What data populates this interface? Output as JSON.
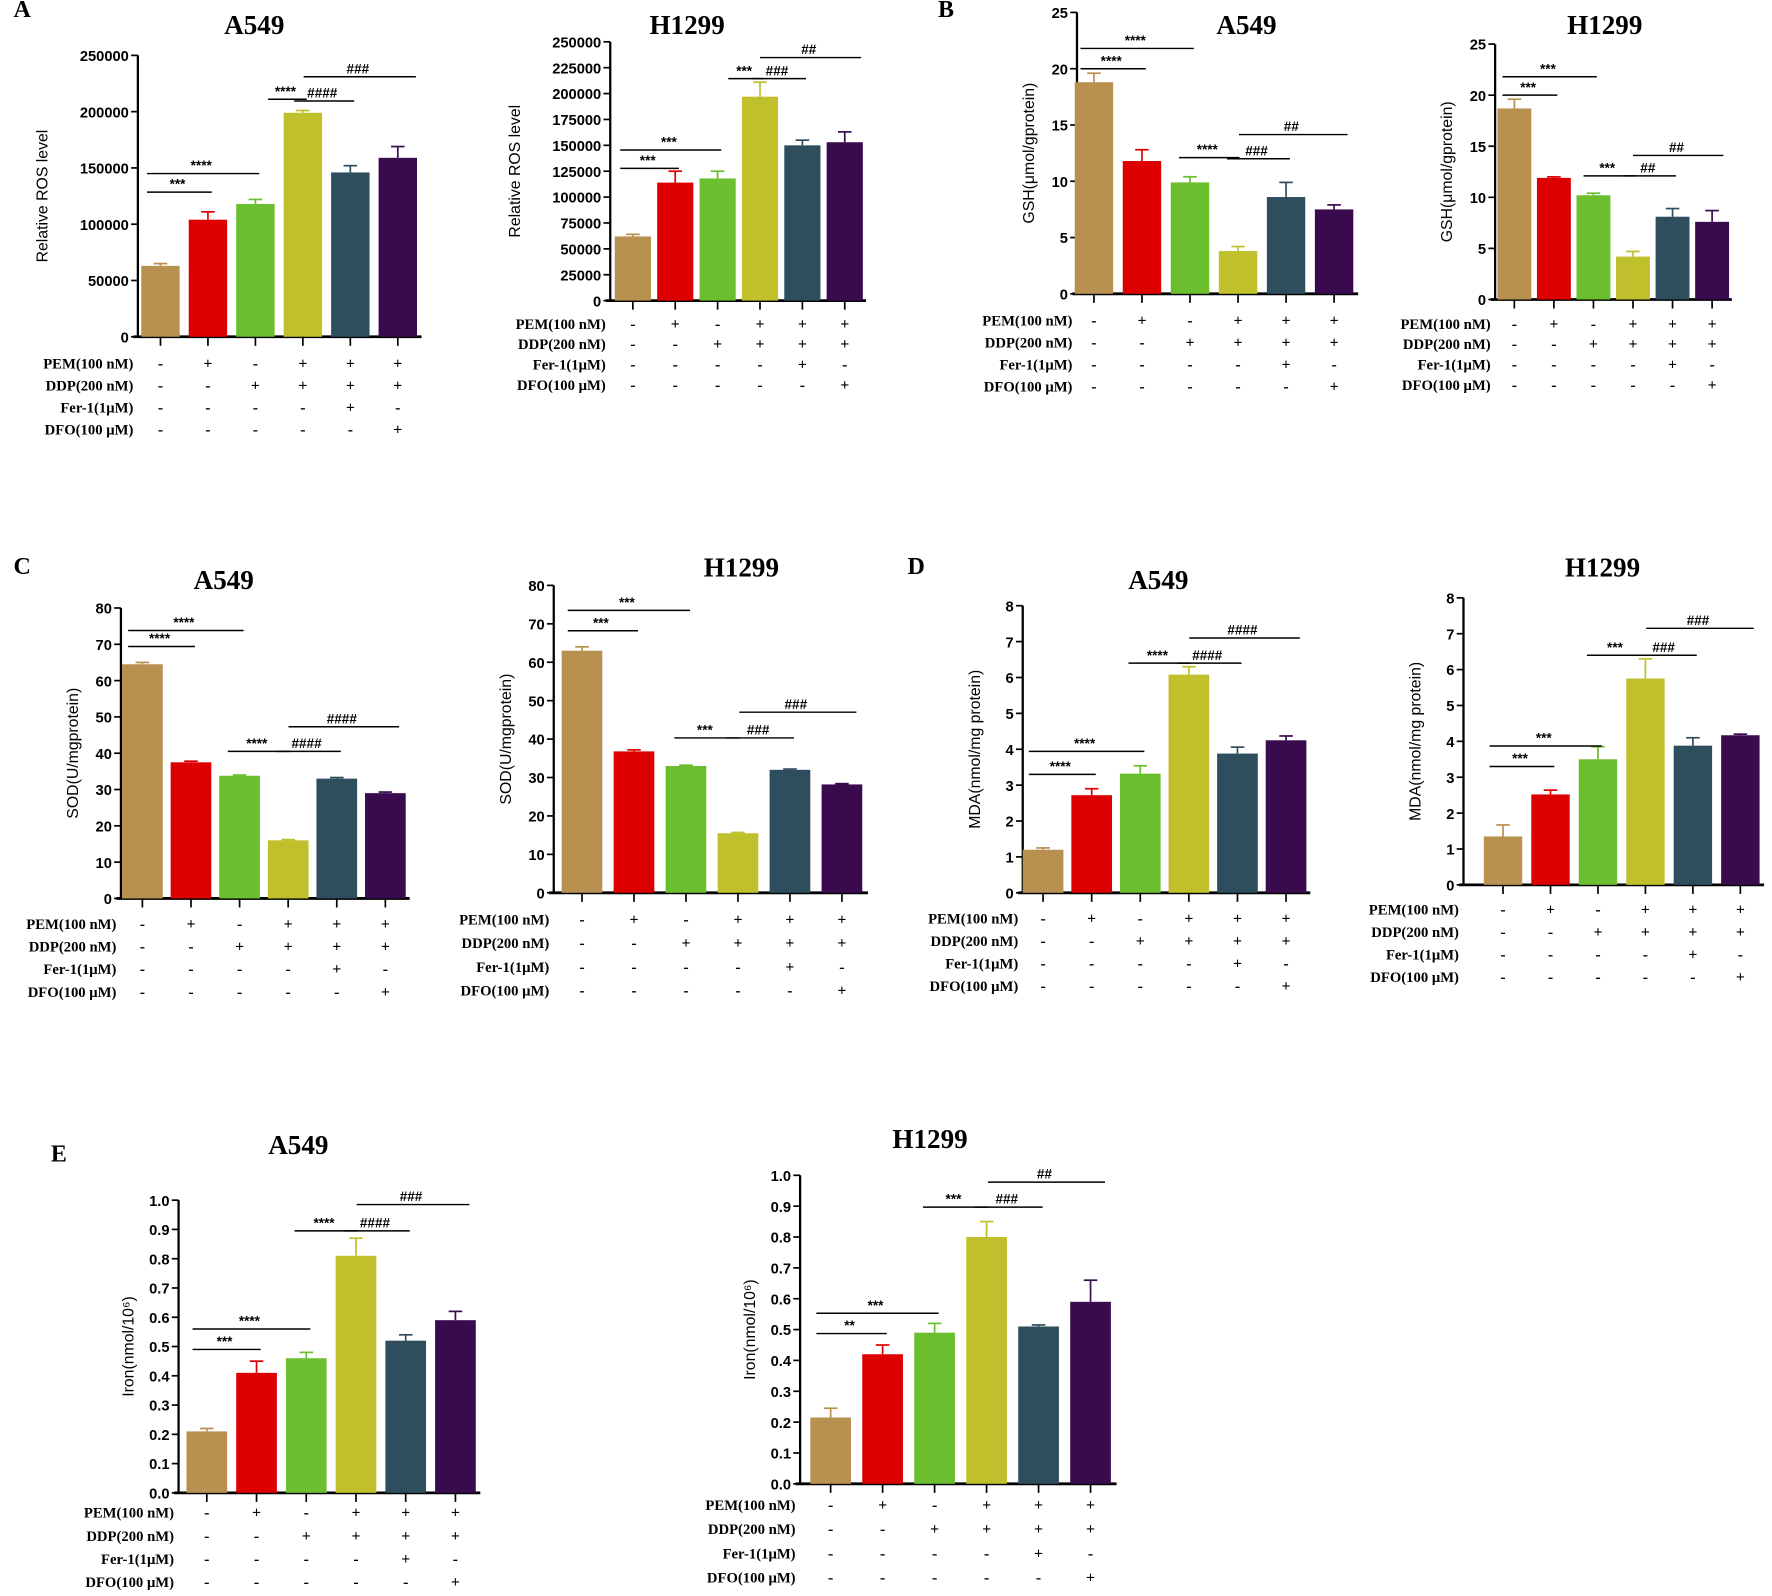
{
  "panels": [
    "A",
    "B",
    "C",
    "D",
    "E"
  ],
  "treatments": {
    "rows": [
      "PEM(100 nM)",
      "DDP(200 nM)",
      "Fer-1(1μM)",
      "DFO(100 μM)"
    ],
    "signs": [
      [
        "-",
        "+",
        "-",
        "+",
        "+",
        "+"
      ],
      [
        "-",
        "-",
        "+",
        "+",
        "+",
        "+"
      ],
      [
        "-",
        "-",
        "-",
        "-",
        "+",
        "-"
      ],
      [
        "-",
        "-",
        "-",
        "-",
        "-",
        "+"
      ]
    ]
  },
  "bar_colors": [
    "#B8904F",
    "#DD0000",
    "#6BBE2E",
    "#C0C02C",
    "#2E4E5E",
    "#3A0A4E"
  ],
  "chart_data": [
    {
      "type": "bar",
      "panel": "A",
      "title": "A549",
      "ylabel": "Relative ROS level",
      "ylim": [
        0,
        250000
      ],
      "yticks": [
        0,
        50000,
        100000,
        150000,
        200000,
        250000
      ],
      "values": [
        63000,
        104000,
        118000,
        199000,
        146000,
        159000
      ],
      "errors": [
        2000,
        7000,
        4000,
        2000,
        6000,
        10000
      ],
      "annotations": [
        {
          "from": 0,
          "to": 1,
          "y": 128500,
          "label": "***"
        },
        {
          "from": 0,
          "to": 2,
          "y": 145000,
          "label": "****"
        },
        {
          "from": 2.55,
          "to": 3,
          "y": 211000,
          "label": "****"
        },
        {
          "from": 3.1,
          "to": 4,
          "y": 209500,
          "label": "####"
        },
        {
          "from": 3.3,
          "to": 5.3,
          "y": 231000,
          "label": "###"
        }
      ]
    },
    {
      "type": "bar",
      "panel": "A",
      "title": "H1299",
      "ylabel": "Relative ROS level",
      "ylim": [
        0,
        250000
      ],
      "yticks": [
        0,
        25000,
        50000,
        75000,
        100000,
        125000,
        150000,
        175000,
        200000,
        225000,
        250000
      ],
      "values": [
        62000,
        114000,
        118000,
        197000,
        150000,
        153000
      ],
      "errors": [
        2000,
        11000,
        7000,
        14000,
        5000,
        10000
      ],
      "annotations": [
        {
          "from": 0,
          "to": 1,
          "y": 127700,
          "label": "***"
        },
        {
          "from": 0,
          "to": 2,
          "y": 145500,
          "label": "***"
        },
        {
          "from": 2.55,
          "to": 3,
          "y": 214400,
          "label": "***"
        },
        {
          "from": 3.1,
          "to": 4,
          "y": 214400,
          "label": "###"
        },
        {
          "from": 3.3,
          "to": 5.3,
          "y": 234800,
          "label": "##"
        }
      ]
    },
    {
      "type": "bar",
      "panel": "B",
      "title": "A549",
      "ylabel": "GSH(μmol/gprotein)",
      "ylim": [
        0,
        25
      ],
      "yticks": [
        0,
        5,
        10,
        15,
        20,
        25
      ],
      "values": [
        18.8,
        11.8,
        9.9,
        3.8,
        8.6,
        7.5
      ],
      "errors": [
        0.8,
        1.0,
        0.5,
        0.4,
        1.3,
        0.4
      ],
      "annotations": [
        {
          "from": 0,
          "to": 1,
          "y": 20.0,
          "label": "****"
        },
        {
          "from": 0,
          "to": 2,
          "y": 21.8,
          "label": "****"
        },
        {
          "from": 2.05,
          "to": 2.95,
          "y": 12.1,
          "label": "****"
        },
        {
          "from": 3.05,
          "to": 4,
          "y": 12.0,
          "label": "###"
        },
        {
          "from": 3.3,
          "to": 5.2,
          "y": 14.15,
          "label": "##"
        }
      ]
    },
    {
      "type": "bar",
      "panel": "B",
      "title": "H1299",
      "ylabel": "GSH(μmol/gprotein)",
      "ylim": [
        0,
        25
      ],
      "yticks": [
        0,
        5,
        10,
        15,
        20,
        25
      ],
      "values": [
        18.7,
        11.9,
        10.2,
        4.2,
        8.1,
        7.6
      ],
      "errors": [
        0.9,
        0.1,
        0.2,
        0.5,
        0.8,
        1.1
      ],
      "annotations": [
        {
          "from": 0,
          "to": 1,
          "y": 20.0,
          "label": "***"
        },
        {
          "from": 0,
          "to": 2,
          "y": 21.8,
          "label": "***"
        },
        {
          "from": 2.05,
          "to": 2.95,
          "y": 12.1,
          "label": "***"
        },
        {
          "from": 3.05,
          "to": 4,
          "y": 12.1,
          "label": "##"
        },
        {
          "from": 3.3,
          "to": 5.2,
          "y": 14.1,
          "label": "##"
        }
      ]
    },
    {
      "type": "bar",
      "panel": "C",
      "title": "A549",
      "ylabel": "SOD(U/mgprotein)",
      "ylim": [
        0,
        80
      ],
      "yticks": [
        0,
        10,
        20,
        30,
        40,
        50,
        60,
        70,
        80
      ],
      "values": [
        64.5,
        37.5,
        33.8,
        16,
        33,
        29
      ],
      "errors": [
        0.5,
        0.3,
        0.2,
        0.2,
        0.3,
        0.3
      ],
      "annotations": [
        {
          "from": 0,
          "to": 1,
          "y": 69.4,
          "label": "****"
        },
        {
          "from": 0,
          "to": 2,
          "y": 73.8,
          "label": "****"
        },
        {
          "from": 2.05,
          "to": 2.95,
          "y": 40.5,
          "label": "****"
        },
        {
          "from": 3.05,
          "to": 4,
          "y": 40.5,
          "label": "####"
        },
        {
          "from": 3.3,
          "to": 5.2,
          "y": 47.3,
          "label": "####"
        }
      ]
    },
    {
      "type": "bar",
      "panel": "C",
      "title": "H1299",
      "ylabel": "SOD(U/mgprotein)",
      "ylim": [
        0,
        80
      ],
      "yticks": [
        0,
        10,
        20,
        30,
        40,
        50,
        60,
        70,
        80
      ],
      "values": [
        63,
        36.8,
        33,
        15.5,
        32,
        28.2
      ],
      "errors": [
        1,
        0.4,
        0.2,
        0.2,
        0.2,
        0.2
      ],
      "annotations": [
        {
          "from": 0,
          "to": 1,
          "y": 68.2,
          "label": "***"
        },
        {
          "from": 0,
          "to": 2,
          "y": 73.5,
          "label": "***"
        },
        {
          "from": 2.05,
          "to": 2.95,
          "y": 40.3,
          "label": "***"
        },
        {
          "from": 3.05,
          "to": 4,
          "y": 40.3,
          "label": "###"
        },
        {
          "from": 3.3,
          "to": 5.2,
          "y": 47,
          "label": "###"
        }
      ]
    },
    {
      "type": "bar",
      "panel": "D",
      "title": "A549",
      "ylabel": "MDA(nmol/mg protein)",
      "ylim": [
        0,
        8
      ],
      "yticks": [
        0,
        1,
        2,
        3,
        4,
        5,
        6,
        7,
        8
      ],
      "values": [
        1.2,
        2.72,
        3.32,
        6.08,
        3.88,
        4.25
      ],
      "errors": [
        0.05,
        0.18,
        0.22,
        0.22,
        0.18,
        0.12
      ],
      "annotations": [
        {
          "from": 0,
          "to": 1,
          "y": 3.3,
          "label": "****"
        },
        {
          "from": 0,
          "to": 2,
          "y": 3.94,
          "label": "****"
        },
        {
          "from": 2.05,
          "to": 2.95,
          "y": 6.4,
          "label": "****"
        },
        {
          "from": 3.05,
          "to": 4,
          "y": 6.4,
          "label": "####"
        },
        {
          "from": 3.3,
          "to": 5.2,
          "y": 7.1,
          "label": "####"
        }
      ]
    },
    {
      "type": "bar",
      "panel": "D",
      "title": "H1299",
      "ylabel": "MDA(nmol/mg protein)",
      "ylim": [
        0,
        8
      ],
      "yticks": [
        0,
        1,
        2,
        3,
        4,
        5,
        6,
        7,
        8
      ],
      "values": [
        1.35,
        2.52,
        3.5,
        5.75,
        3.88,
        4.17
      ],
      "errors": [
        0.32,
        0.12,
        0.35,
        0.55,
        0.22,
        0.03
      ],
      "annotations": [
        {
          "from": 0,
          "to": 1,
          "y": 3.3,
          "label": "***"
        },
        {
          "from": 0,
          "to": 2,
          "y": 3.87,
          "label": "***"
        },
        {
          "from": 2.05,
          "to": 2.95,
          "y": 6.4,
          "label": "***"
        },
        {
          "from": 3.05,
          "to": 4,
          "y": 6.4,
          "label": "###"
        },
        {
          "from": 3.3,
          "to": 5.2,
          "y": 7.15,
          "label": "###"
        }
      ]
    },
    {
      "type": "bar",
      "panel": "E",
      "title": "A549",
      "ylabel": "Iron(nmol/10⁶)",
      "ylim": [
        0,
        1
      ],
      "yticks": [
        0.0,
        0.1,
        0.2,
        0.3,
        0.4,
        0.5,
        0.6,
        0.7,
        0.8,
        0.9,
        1.0
      ],
      "values": [
        0.21,
        0.41,
        0.46,
        0.81,
        0.52,
        0.59
      ],
      "errors": [
        0.01,
        0.04,
        0.02,
        0.06,
        0.02,
        0.03
      ],
      "annotations": [
        {
          "from": 0,
          "to": 1,
          "y": 0.49,
          "label": "***"
        },
        {
          "from": 0,
          "to": 2,
          "y": 0.56,
          "label": "****"
        },
        {
          "from": 2.05,
          "to": 2.95,
          "y": 0.895,
          "label": "****"
        },
        {
          "from": 3.05,
          "to": 4,
          "y": 0.895,
          "label": "####"
        },
        {
          "from": 3.3,
          "to": 5.2,
          "y": 0.985,
          "label": "###"
        }
      ]
    },
    {
      "type": "bar",
      "panel": "E",
      "title": "H1299",
      "ylabel": "Iron(nmol/10⁶)",
      "ylim": [
        0,
        1
      ],
      "yticks": [
        0.0,
        0.1,
        0.2,
        0.3,
        0.4,
        0.5,
        0.6,
        0.7,
        0.8,
        0.9,
        1.0
      ],
      "values": [
        0.215,
        0.42,
        0.49,
        0.8,
        0.51,
        0.59
      ],
      "errors": [
        0.03,
        0.03,
        0.03,
        0.05,
        0.005,
        0.07
      ],
      "annotations": [
        {
          "from": 0,
          "to": 1,
          "y": 0.487,
          "label": "**"
        },
        {
          "from": 0,
          "to": 2,
          "y": 0.553,
          "label": "***"
        },
        {
          "from": 2.05,
          "to": 2.95,
          "y": 0.897,
          "label": "***"
        },
        {
          "from": 3.05,
          "to": 4,
          "y": 0.897,
          "label": "###"
        },
        {
          "from": 3.3,
          "to": 5.2,
          "y": 0.978,
          "label": "##"
        }
      ]
    }
  ]
}
